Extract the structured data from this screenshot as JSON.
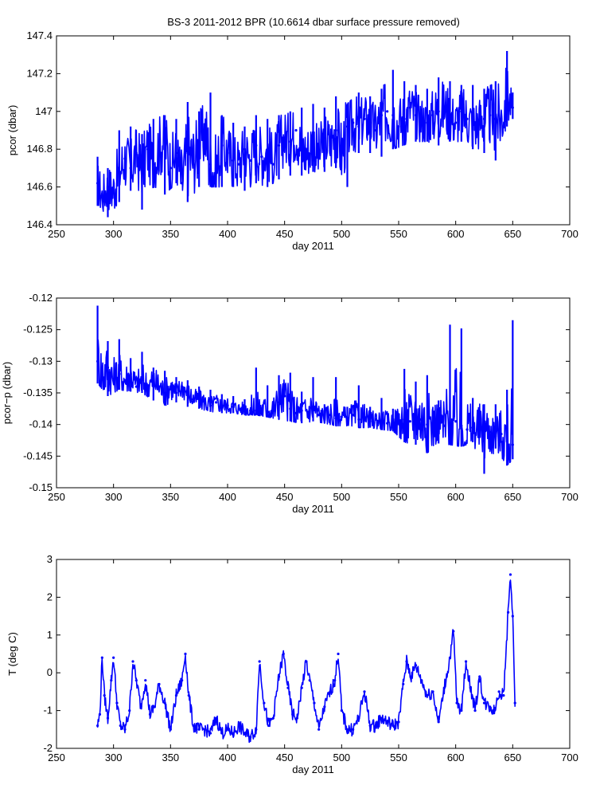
{
  "figure_title": "BS-3 2011-2012 BPR (10.6614 dbar surface pressure removed)",
  "colors": {
    "series": "#0000ff",
    "axes": "#000000",
    "background": "#ffffff"
  },
  "chart_data": [
    {
      "type": "line",
      "title": "BS-3 2011-2012 BPR (10.6614 dbar surface pressure removed)",
      "xlabel": "day 2011",
      "ylabel": "pcor (dbar)",
      "xlim": [
        250,
        700
      ],
      "ylim": [
        146.4,
        147.4
      ],
      "xticks": [
        "250",
        "300",
        "350",
        "400",
        "450",
        "500",
        "550",
        "600",
        "650",
        "700"
      ],
      "yticks": [
        "146.4",
        "146.6",
        "146.8",
        "147",
        "147.2",
        "147.4"
      ],
      "grid": false,
      "series": [
        {
          "x": [
            286,
            290,
            295,
            300,
            305,
            310,
            315,
            320,
            325,
            330,
            335,
            340,
            345,
            350,
            355,
            360,
            365,
            370,
            375,
            380,
            385,
            390,
            395,
            400,
            405,
            410,
            415,
            420,
            425,
            430,
            435,
            440,
            445,
            450,
            455,
            460,
            465,
            470,
            475,
            480,
            485,
            490,
            495,
            500,
            505,
            510,
            515,
            520,
            525,
            530,
            535,
            540,
            545,
            550,
            555,
            560,
            565,
            570,
            575,
            580,
            585,
            590,
            595,
            600,
            605,
            610,
            615,
            620,
            625,
            630,
            635,
            640,
            645,
            650
          ],
          "y": [
            146.62,
            146.55,
            146.6,
            146.58,
            146.68,
            146.75,
            146.7,
            146.78,
            146.68,
            146.8,
            146.72,
            146.82,
            146.86,
            146.7,
            146.78,
            146.62,
            146.78,
            146.74,
            146.82,
            146.9,
            146.72,
            146.68,
            146.82,
            146.78,
            146.74,
            146.72,
            146.8,
            146.74,
            146.82,
            146.76,
            146.8,
            146.72,
            146.82,
            146.86,
            146.84,
            146.9,
            146.8,
            146.78,
            146.84,
            146.76,
            146.86,
            146.82,
            146.9,
            146.78,
            146.92,
            146.94,
            146.92,
            146.96,
            146.94,
            146.9,
            146.98,
            147.0,
            146.98,
            146.92,
            146.96,
            147.02,
            146.98,
            146.96,
            146.94,
            146.98,
            147.0,
            147.02,
            146.98,
            146.94,
            147.0,
            146.96,
            146.94,
            146.94,
            146.96,
            146.98,
            146.96,
            146.96,
            147.08,
            147.02
          ],
          "bands": {
            "x": [
              286,
              295,
              305,
              315,
              325,
              335,
              345,
              355,
              365,
              375,
              385,
              395,
              405,
              415,
              425,
              435,
              445,
              455,
              465,
              475,
              485,
              495,
              505,
              515,
              525,
              535,
              545,
              555,
              565,
              575,
              585,
              595,
              605,
              615,
              625,
              635,
              645,
              650
            ],
            "low": [
              146.5,
              146.44,
              146.52,
              146.58,
              146.48,
              146.6,
              146.56,
              146.62,
              146.52,
              146.6,
              146.6,
              146.6,
              146.6,
              146.58,
              146.62,
              146.6,
              146.64,
              146.66,
              146.66,
              146.68,
              146.68,
              146.7,
              146.6,
              146.78,
              146.78,
              146.76,
              146.8,
              146.82,
              146.84,
              146.84,
              146.82,
              146.84,
              146.84,
              146.8,
              146.78,
              146.74,
              146.92,
              146.96
            ],
            "high": [
              146.76,
              146.7,
              146.9,
              146.92,
              146.88,
              146.96,
              146.98,
              146.96,
              147.05,
              147.0,
              147.1,
              146.98,
              146.94,
              146.92,
              146.98,
              146.96,
              146.98,
              147.0,
              147.02,
              147.04,
              147.02,
              147.08,
              147.04,
              147.1,
              147.08,
              147.12,
              147.22,
              147.16,
              147.14,
              147.12,
              147.18,
              147.16,
              147.14,
              147.14,
              147.12,
              147.16,
              147.32,
              147.1
            ]
          }
        }
      ]
    },
    {
      "type": "line",
      "xlabel": "day 2011",
      "ylabel": "pcor−p (dbar)",
      "xlim": [
        250,
        700
      ],
      "ylim": [
        -0.15,
        -0.12
      ],
      "xticks": [
        "250",
        "300",
        "350",
        "400",
        "450",
        "500",
        "550",
        "600",
        "650",
        "700"
      ],
      "yticks": [
        "-0.15",
        "-0.145",
        "-0.14",
        "-0.135",
        "-0.13",
        "-0.125",
        "-0.12"
      ],
      "grid": false,
      "series": [
        {
          "x": [
            286,
            290,
            295,
            300,
            305,
            310,
            315,
            320,
            325,
            330,
            335,
            340,
            345,
            350,
            355,
            360,
            365,
            370,
            375,
            380,
            385,
            390,
            395,
            400,
            405,
            410,
            415,
            420,
            425,
            430,
            435,
            440,
            445,
            450,
            455,
            460,
            465,
            470,
            475,
            480,
            485,
            490,
            495,
            500,
            505,
            510,
            515,
            520,
            525,
            530,
            535,
            540,
            545,
            550,
            555,
            560,
            565,
            570,
            575,
            580,
            585,
            590,
            595,
            600,
            605,
            610,
            615,
            620,
            625,
            630,
            635,
            640,
            645,
            650
          ],
          "y": [
            -0.13,
            -0.132,
            -0.131,
            -0.133,
            -0.132,
            -0.133,
            -0.132,
            -0.134,
            -0.133,
            -0.134,
            -0.133,
            -0.134,
            -0.135,
            -0.134,
            -0.135,
            -0.134,
            -0.135,
            -0.136,
            -0.136,
            -0.1365,
            -0.137,
            -0.1365,
            -0.137,
            -0.137,
            -0.1372,
            -0.1375,
            -0.1375,
            -0.1378,
            -0.1378,
            -0.1375,
            -0.138,
            -0.1378,
            -0.1365,
            -0.1355,
            -0.1375,
            -0.1382,
            -0.1378,
            -0.138,
            -0.1372,
            -0.1385,
            -0.1388,
            -0.1385,
            -0.139,
            -0.1388,
            -0.139,
            -0.1385,
            -0.1392,
            -0.139,
            -0.1395,
            -0.1392,
            -0.1395,
            -0.1398,
            -0.1398,
            -0.1398,
            -0.1392,
            -0.1395,
            -0.1385,
            -0.1392,
            -0.14,
            -0.1398,
            -0.1395,
            -0.1402,
            -0.14,
            -0.1395,
            -0.1402,
            -0.1408,
            -0.1405,
            -0.1408,
            -0.141,
            -0.1412,
            -0.1418,
            -0.1415,
            -0.142,
            -0.1432
          ],
          "bands": {
            "x": [
              286,
              295,
              305,
              315,
              325,
              335,
              345,
              355,
              365,
              375,
              385,
              395,
              405,
              415,
              425,
              435,
              445,
              455,
              465,
              475,
              485,
              495,
              505,
              515,
              525,
              535,
              545,
              555,
              565,
              575,
              585,
              595,
              605,
              615,
              625,
              635,
              645,
              650
            ],
            "low": [
              -0.1335,
              -0.1355,
              -0.1345,
              -0.1348,
              -0.135,
              -0.1362,
              -0.137,
              -0.1365,
              -0.1372,
              -0.1375,
              -0.138,
              -0.1382,
              -0.1382,
              -0.1385,
              -0.1385,
              -0.1388,
              -0.1392,
              -0.1395,
              -0.1398,
              -0.1395,
              -0.1398,
              -0.1402,
              -0.1402,
              -0.1405,
              -0.1405,
              -0.1408,
              -0.141,
              -0.1428,
              -0.1432,
              -0.1445,
              -0.143,
              -0.1432,
              -0.1435,
              -0.1428,
              -0.1478,
              -0.1438,
              -0.1465,
              -0.1455
            ],
            "high": [
              -0.1212,
              -0.1268,
              -0.1265,
              -0.1295,
              -0.1285,
              -0.131,
              -0.1315,
              -0.1325,
              -0.133,
              -0.134,
              -0.1345,
              -0.1352,
              -0.1355,
              -0.136,
              -0.131,
              -0.1338,
              -0.1322,
              -0.1318,
              -0.1348,
              -0.1325,
              -0.1368,
              -0.1325,
              -0.1372,
              -0.1338,
              -0.1372,
              -0.1358,
              -0.1375,
              -0.1312,
              -0.1332,
              -0.1322,
              -0.1362,
              -0.1242,
              -0.1248,
              -0.1358,
              -0.1368,
              -0.1368,
              -0.1345,
              -0.1235
            ]
          }
        }
      ]
    },
    {
      "type": "line",
      "xlabel": "day 2011",
      "ylabel": "T (deg C)",
      "xlim": [
        250,
        700
      ],
      "ylim": [
        -2,
        3
      ],
      "xticks": [
        "250",
        "300",
        "350",
        "400",
        "450",
        "500",
        "550",
        "600",
        "650",
        "700"
      ],
      "yticks": [
        "-2",
        "-1",
        "0",
        "1",
        "2",
        "3"
      ],
      "grid": false,
      "series": [
        {
          "x": [
            286,
            288,
            290,
            292,
            295,
            298,
            300,
            303,
            306,
            310,
            314,
            317,
            320,
            324,
            328,
            332,
            336,
            340,
            345,
            350,
            355,
            360,
            363,
            366,
            370,
            375,
            380,
            385,
            390,
            395,
            400,
            405,
            410,
            415,
            420,
            425,
            428,
            432,
            436,
            440,
            445,
            449,
            453,
            457,
            461,
            465,
            469,
            472,
            476,
            480,
            485,
            490,
            494,
            497,
            500,
            505,
            510,
            515,
            520,
            525,
            530,
            535,
            540,
            545,
            550,
            554,
            557,
            561,
            565,
            570,
            575,
            580,
            585,
            590,
            595,
            598,
            601,
            605,
            609,
            613,
            617,
            621,
            625,
            630,
            634,
            638,
            642,
            646,
            648,
            650,
            652
          ],
          "y": [
            -1.4,
            -1.1,
            0.4,
            -0.6,
            -1.2,
            -0.2,
            0.4,
            -0.8,
            -1.4,
            -1.5,
            -1.0,
            0.3,
            -0.2,
            -0.9,
            -0.2,
            -1.1,
            -0.9,
            -0.3,
            -0.8,
            -1.5,
            -0.6,
            -0.2,
            0.5,
            -0.6,
            -1.4,
            -1.5,
            -1.5,
            -1.6,
            -1.2,
            -1.6,
            -1.5,
            -1.6,
            -1.4,
            -1.6,
            -1.7,
            -1.5,
            0.3,
            -0.8,
            -1.4,
            -1.2,
            -0.1,
            0.5,
            -0.4,
            -1.1,
            -1.2,
            -0.4,
            0.3,
            -0.2,
            -0.8,
            -1.5,
            -0.9,
            -0.5,
            -0.2,
            0.5,
            -1.0,
            -1.5,
            -1.5,
            -1.2,
            -0.5,
            -1.4,
            -1.4,
            -1.2,
            -1.3,
            -1.4,
            -1.3,
            -0.3,
            0.3,
            -0.1,
            0.2,
            -0.2,
            -0.6,
            -0.5,
            -1.3,
            -0.4,
            0.4,
            1.1,
            -0.8,
            -1.0,
            0.3,
            -0.4,
            -1.0,
            -0.1,
            -0.8,
            -0.9,
            -1.0,
            -0.5,
            -0.6,
            1.6,
            2.6,
            1.5,
            -0.8
          ]
        }
      ]
    }
  ]
}
